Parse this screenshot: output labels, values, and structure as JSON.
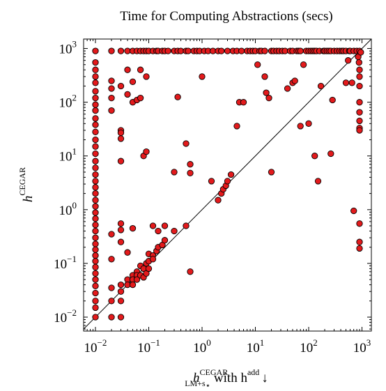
{
  "chart_data": {
    "type": "scatter",
    "title": "Time for Computing Abstractions (secs)",
    "x_scale": "log",
    "y_scale": "log",
    "xlim": [
      0.006,
      1500
    ],
    "ylim": [
      0.0055,
      1500
    ],
    "x_ticks": [
      0.01,
      0.1,
      1,
      10,
      100,
      1000
    ],
    "y_ticks": [
      0.01,
      0.1,
      1,
      10,
      100,
      1000
    ],
    "tick_labels": [
      {
        "base": "10",
        "exp": "−2"
      },
      {
        "base": "10",
        "exp": "−1"
      },
      {
        "base": "10",
        "exp": "0"
      },
      {
        "base": "10",
        "exp": "1"
      },
      {
        "base": "10",
        "exp": "2"
      },
      {
        "base": "10",
        "exp": "3"
      }
    ],
    "xlabel": {
      "main": "h",
      "sup": "CEGAR",
      "sub": "LM+s",
      "sub_star": "⋆",
      "tail": " with h",
      "tail_sup": "add",
      "arrow": "↓"
    },
    "ylabel": {
      "main": "h",
      "sup": "CEGAR"
    },
    "diagonal": "y = x",
    "marker_color": "#e31a1c",
    "marker_stroke": "#000000",
    "grid": false,
    "series": [
      {
        "points": [
          [
            0.01,
            900
          ],
          [
            0.01,
            550
          ],
          [
            0.01,
            400
          ],
          [
            0.01,
            300
          ],
          [
            0.01,
            230
          ],
          [
            0.01,
            160
          ],
          [
            0.01,
            120
          ],
          [
            0.01,
            90
          ],
          [
            0.01,
            70
          ],
          [
            0.01,
            50
          ],
          [
            0.01,
            38
          ],
          [
            0.01,
            28
          ],
          [
            0.01,
            20
          ],
          [
            0.01,
            15
          ],
          [
            0.01,
            11
          ],
          [
            0.01,
            8
          ],
          [
            0.01,
            6
          ],
          [
            0.01,
            4.5
          ],
          [
            0.01,
            3.4
          ],
          [
            0.01,
            2.6
          ],
          [
            0.01,
            2
          ],
          [
            0.01,
            1.5
          ],
          [
            0.01,
            1.15
          ],
          [
            0.01,
            0.88
          ],
          [
            0.01,
            0.68
          ],
          [
            0.01,
            0.52
          ],
          [
            0.01,
            0.4
          ],
          [
            0.01,
            0.3
          ],
          [
            0.01,
            0.23
          ],
          [
            0.01,
            0.18
          ],
          [
            0.01,
            0.14
          ],
          [
            0.01,
            0.11
          ],
          [
            0.01,
            0.085
          ],
          [
            0.01,
            0.065
          ],
          [
            0.01,
            0.05
          ],
          [
            0.01,
            0.038
          ],
          [
            0.01,
            0.028
          ],
          [
            0.01,
            0.02
          ],
          [
            0.01,
            0.015
          ],
          [
            0.01,
            0.01
          ],
          [
            0.02,
            900
          ],
          [
            0.02,
            250
          ],
          [
            0.02,
            180
          ],
          [
            0.02,
            120
          ],
          [
            0.02,
            70
          ],
          [
            0.02,
            0.35
          ],
          [
            0.02,
            0.12
          ],
          [
            0.02,
            0.035
          ],
          [
            0.02,
            0.02
          ],
          [
            0.02,
            0.01
          ],
          [
            0.03,
            900
          ],
          [
            0.03,
            200
          ],
          [
            0.03,
            30
          ],
          [
            0.03,
            27
          ],
          [
            0.03,
            21
          ],
          [
            0.03,
            8
          ],
          [
            0.03,
            0.55
          ],
          [
            0.03,
            0.42
          ],
          [
            0.03,
            0.25
          ],
          [
            0.03,
            0.04
          ],
          [
            0.03,
            0.03
          ],
          [
            0.03,
            0.02
          ],
          [
            0.03,
            0.01
          ],
          [
            0.04,
            900
          ],
          [
            0.04,
            400
          ],
          [
            0.04,
            140
          ],
          [
            0.04,
            0.16
          ],
          [
            0.04,
            0.05
          ],
          [
            0.04,
            0.04
          ],
          [
            0.05,
            900
          ],
          [
            0.05,
            240
          ],
          [
            0.05,
            100
          ],
          [
            0.05,
            0.45
          ],
          [
            0.05,
            0.06
          ],
          [
            0.05,
            0.05
          ],
          [
            0.05,
            0.04
          ],
          [
            0.06,
            900
          ],
          [
            0.06,
            110
          ],
          [
            0.06,
            0.07
          ],
          [
            0.06,
            0.06
          ],
          [
            0.06,
            0.05
          ],
          [
            0.07,
            900
          ],
          [
            0.07,
            400
          ],
          [
            0.07,
            120
          ],
          [
            0.07,
            0.09
          ],
          [
            0.07,
            0.06
          ],
          [
            0.08,
            900
          ],
          [
            0.08,
            10
          ],
          [
            0.08,
            0.08
          ],
          [
            0.08,
            0.055
          ],
          [
            0.09,
            900
          ],
          [
            0.09,
            300
          ],
          [
            0.09,
            12
          ],
          [
            0.09,
            0.1
          ],
          [
            0.09,
            0.065
          ],
          [
            0.1,
            900
          ],
          [
            0.1,
            0.15
          ],
          [
            0.1,
            0.11
          ],
          [
            0.1,
            0.08
          ],
          [
            0.12,
            900
          ],
          [
            0.12,
            0.5
          ],
          [
            0.12,
            0.14
          ],
          [
            0.12,
            0.12
          ],
          [
            0.14,
            900
          ],
          [
            0.14,
            0.17
          ],
          [
            0.15,
            900
          ],
          [
            0.15,
            0.4
          ],
          [
            0.15,
            0.2
          ],
          [
            0.18,
            900
          ],
          [
            0.18,
            0.22
          ],
          [
            0.2,
            900
          ],
          [
            0.2,
            0.5
          ],
          [
            0.2,
            0.27
          ],
          [
            0.23,
            900
          ],
          [
            0.3,
            900
          ],
          [
            0.3,
            5
          ],
          [
            0.3,
            0.4
          ],
          [
            0.35,
            900
          ],
          [
            0.35,
            125
          ],
          [
            0.4,
            900
          ],
          [
            0.5,
            900
          ],
          [
            0.5,
            0.5
          ],
          [
            0.5,
            17
          ],
          [
            0.55,
            900
          ],
          [
            0.6,
            7
          ],
          [
            0.6,
            0.07
          ],
          [
            0.6,
            4.8
          ],
          [
            0.7,
            900
          ],
          [
            0.8,
            900
          ],
          [
            0.9,
            900
          ],
          [
            1.0,
            300
          ],
          [
            1.1,
            900
          ],
          [
            1.3,
            900
          ],
          [
            1.5,
            3.4
          ],
          [
            1.6,
            900
          ],
          [
            2,
            900
          ],
          [
            2,
            1.5
          ],
          [
            2.3,
            2.0
          ],
          [
            2.3,
            900
          ],
          [
            2.5,
            2.4
          ],
          [
            2.8,
            2.8
          ],
          [
            3,
            900
          ],
          [
            3,
            3.4
          ],
          [
            3.5,
            4.5
          ],
          [
            3.8,
            900
          ],
          [
            4.5,
            900
          ],
          [
            4.5,
            36
          ],
          [
            5,
            100
          ],
          [
            5.5,
            900
          ],
          [
            6,
            100
          ],
          [
            7,
            900
          ],
          [
            8,
            900
          ],
          [
            9,
            900
          ],
          [
            10,
            900
          ],
          [
            11,
            500
          ],
          [
            12,
            900
          ],
          [
            13,
            900
          ],
          [
            15,
            900
          ],
          [
            15,
            300
          ],
          [
            16,
            150
          ],
          [
            18,
            120
          ],
          [
            20,
            900
          ],
          [
            20,
            5
          ],
          [
            22,
            900
          ],
          [
            25,
            900
          ],
          [
            28,
            900
          ],
          [
            32,
            900
          ],
          [
            36,
            900
          ],
          [
            40,
            180
          ],
          [
            45,
            900
          ],
          [
            50,
            900
          ],
          [
            50,
            230
          ],
          [
            55,
            250
          ],
          [
            60,
            900
          ],
          [
            65,
            900
          ],
          [
            70,
            900
          ],
          [
            70,
            36
          ],
          [
            80,
            500
          ],
          [
            90,
            900
          ],
          [
            100,
            900
          ],
          [
            100,
            40
          ],
          [
            110,
            900
          ],
          [
            120,
            900
          ],
          [
            130,
            900
          ],
          [
            130,
            10
          ],
          [
            140,
            900
          ],
          [
            150,
            3.4
          ],
          [
            160,
            900
          ],
          [
            170,
            200
          ],
          [
            190,
            900
          ],
          [
            200,
            900
          ],
          [
            220,
            900
          ],
          [
            240,
            900
          ],
          [
            260,
            900
          ],
          [
            260,
            11
          ],
          [
            280,
            110
          ],
          [
            300,
            900
          ],
          [
            340,
            900
          ],
          [
            380,
            900
          ],
          [
            420,
            900
          ],
          [
            450,
            900
          ],
          [
            500,
            230
          ],
          [
            500,
            900
          ],
          [
            550,
            600
          ],
          [
            580,
            900
          ],
          [
            600,
            900
          ],
          [
            650,
            230
          ],
          [
            700,
            900
          ],
          [
            700,
            0.95
          ],
          [
            800,
            900
          ],
          [
            850,
            700
          ],
          [
            880,
            550
          ],
          [
            900,
            900
          ],
          [
            900,
            400
          ],
          [
            900,
            300
          ],
          [
            900,
            200
          ],
          [
            900,
            100
          ],
          [
            900,
            65
          ],
          [
            900,
            45
          ],
          [
            900,
            33
          ],
          [
            900,
            30
          ],
          [
            900,
            0.55
          ],
          [
            900,
            0.25
          ],
          [
            900,
            0.19
          ],
          [
            950,
            850
          ]
        ]
      }
    ]
  }
}
